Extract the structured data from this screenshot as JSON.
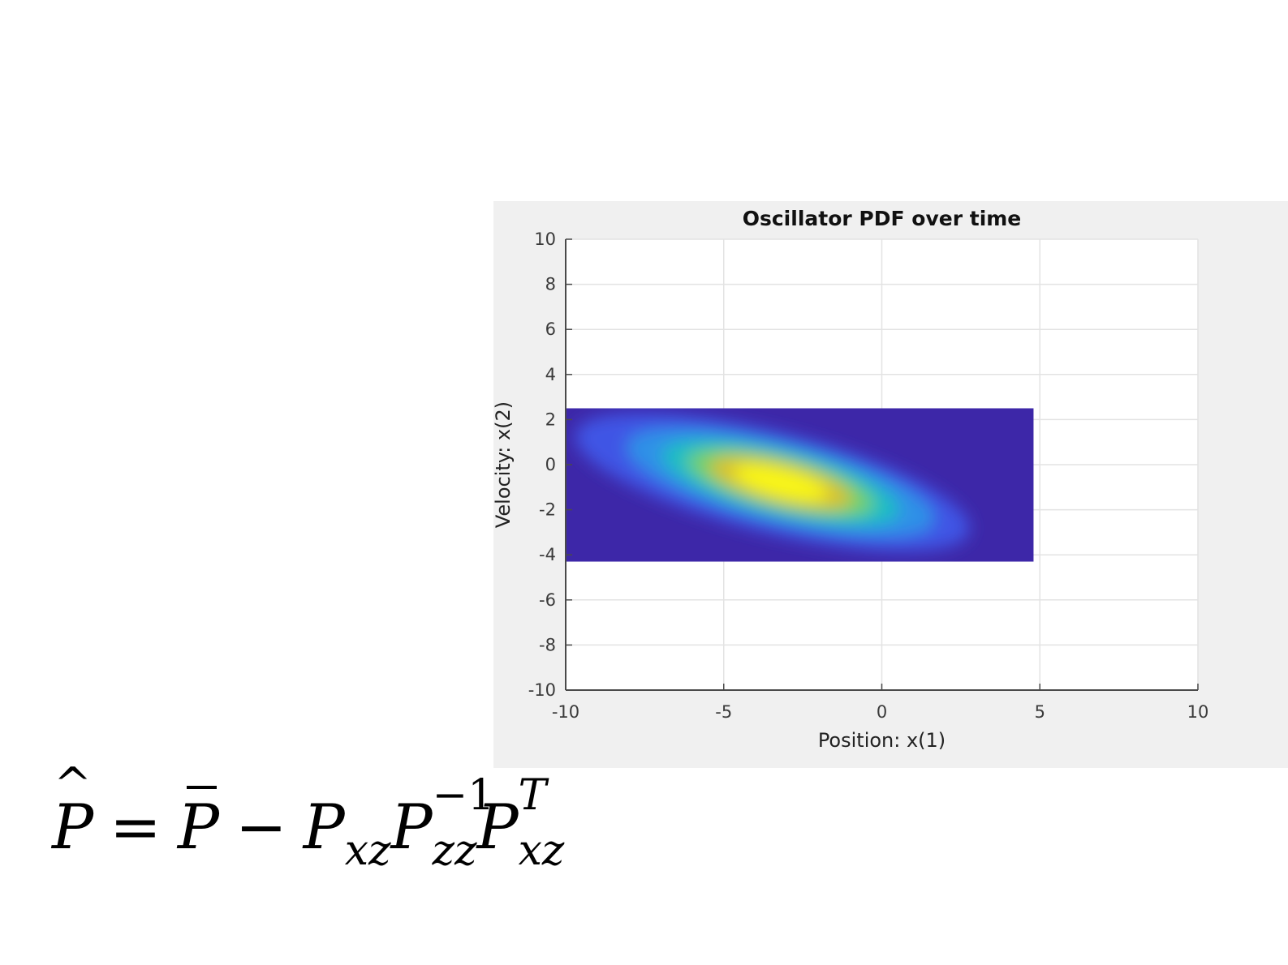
{
  "chart_data": {
    "type": "heatmap",
    "title": "Oscillator PDF over time",
    "xlabel": "Position: x(1)",
    "ylabel": "Velocity: x(2)",
    "xlim": [
      -10,
      10
    ],
    "ylim": [
      -10,
      10
    ],
    "xticks": [
      "-10",
      "-5",
      "0",
      "5",
      "10"
    ],
    "yticks": [
      "10",
      "8",
      "6",
      "4",
      "2",
      "0",
      "-2",
      "-4",
      "-6",
      "-8",
      "-10"
    ],
    "grid": true,
    "colormap": "parula",
    "data_extent": {
      "x": [
        -10,
        4.8
      ],
      "y": [
        -4.3,
        2.5
      ]
    },
    "density_peak": {
      "x": -3.2,
      "y": -0.8
    },
    "background_color": "#3d27a8",
    "colors": [
      "#3d27a8",
      "#3e5ef0",
      "#2f98e8",
      "#1fbec2",
      "#72d06c",
      "#d8c12e",
      "#f9f714"
    ]
  },
  "formula": {
    "P": "P",
    "equals": "=",
    "minus": "−",
    "sub_xz": "xz",
    "sub_zz": "zz",
    "sup_inv": "−1",
    "sup_T": "T"
  }
}
